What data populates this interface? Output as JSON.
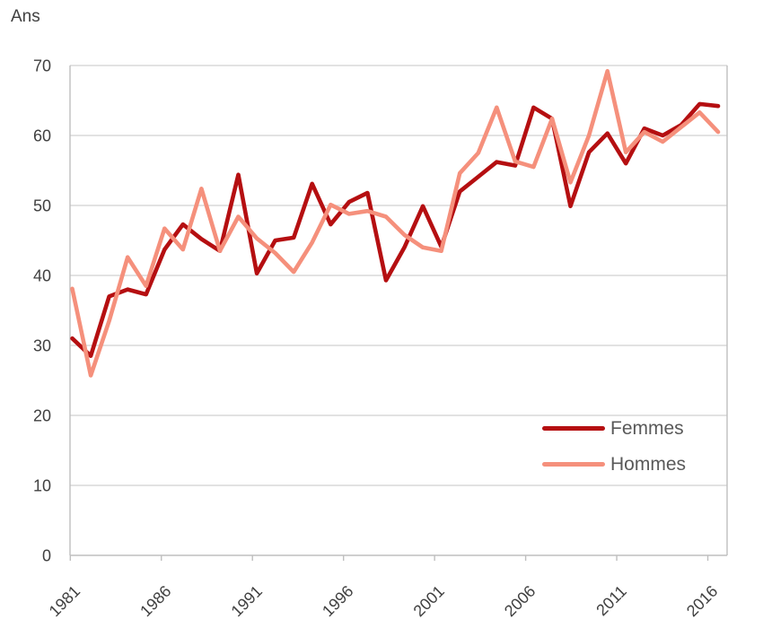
{
  "y_axis_title": "Ans",
  "legend": {
    "items": [
      {
        "label": "Femmes",
        "color": "#b50f11"
      },
      {
        "label": "Hommes",
        "color": "#f5907c"
      }
    ]
  },
  "colors": {
    "background": "#ffffff",
    "grid": "#d9d9d9",
    "frame": "#bfbfbf",
    "axis_text": "#404040",
    "legend_text": "#595959"
  },
  "chart_data": {
    "type": "line",
    "title": "",
    "xlabel": "",
    "ylabel": "Ans",
    "ylim": [
      0,
      70
    ],
    "grid": "horizontal",
    "legend_position": "inside-bottom-right",
    "y_ticks": [
      0,
      10,
      20,
      30,
      40,
      50,
      60,
      70
    ],
    "x_tick_labels": [
      "1981",
      "1986",
      "1991",
      "1996",
      "2001",
      "2006",
      "2011",
      "2016"
    ],
    "x": [
      1981,
      1982,
      1983,
      1984,
      1985,
      1986,
      1987,
      1988,
      1989,
      1990,
      1991,
      1992,
      1993,
      1994,
      1995,
      1996,
      1997,
      1998,
      1999,
      2000,
      2001,
      2002,
      2003,
      2004,
      2005,
      2006,
      2007,
      2008,
      2009,
      2010,
      2011,
      2012,
      2013,
      2014,
      2015,
      2016
    ],
    "series": [
      {
        "name": "Femmes",
        "color": "#b50f11",
        "values": [
          31.0,
          28.5,
          37.0,
          38.0,
          37.3,
          43.7,
          47.3,
          45.2,
          43.5,
          54.4,
          40.3,
          45.0,
          45.4,
          53.1,
          47.3,
          50.5,
          51.8,
          39.3,
          44.0,
          49.9,
          44.1,
          52.0,
          54.1,
          56.2,
          55.7,
          64.0,
          62.4,
          49.9,
          57.6,
          60.3,
          56.0,
          61.0,
          60.0,
          61.5,
          64.5,
          64.2
        ]
      },
      {
        "name": "Hommes",
        "color": "#f5907c",
        "values": [
          38.1,
          25.7,
          33.5,
          42.6,
          38.5,
          46.7,
          43.7,
          52.4,
          43.5,
          48.4,
          45.3,
          43.2,
          40.5,
          44.7,
          50.1,
          48.8,
          49.2,
          48.4,
          45.8,
          44.0,
          43.5,
          54.6,
          57.5,
          64.0,
          56.3,
          55.5,
          62.4,
          53.3,
          60.0,
          69.2,
          57.6,
          60.5,
          59.1,
          61.2,
          63.3,
          60.5
        ]
      }
    ]
  }
}
